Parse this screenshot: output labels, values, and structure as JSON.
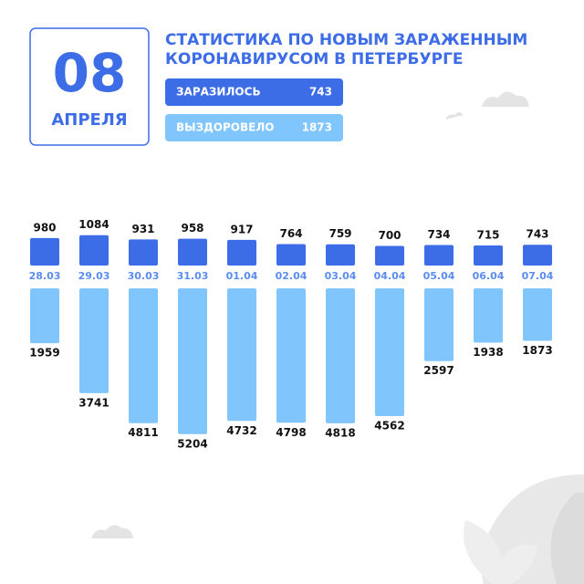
{
  "date_box": {
    "day": "08",
    "month": "АПРЕЛЯ"
  },
  "chart_data": {
    "type": "bar",
    "title": [
      "СТАТИСТИКА ПО НОВЫМ ЗАРАЖЕННЫМ",
      "КОРОНАВИРУСОМ В ПЕТЕРБУРГЕ"
    ],
    "categories": [
      "28.03",
      "29.03",
      "30.03",
      "31.03",
      "01.04",
      "02.04",
      "03.04",
      "04.04",
      "05.04",
      "06.04",
      "07.04"
    ],
    "series": [
      {
        "name": "ЗАРАЗИЛОСЬ",
        "color": "#3d6ce7",
        "values": [
          980,
          1084,
          931,
          958,
          917,
          764,
          759,
          700,
          734,
          715,
          743
        ]
      },
      {
        "name": "ВЫЗДОРОВЕЛО",
        "color": "#80c5fb",
        "values": [
          1959,
          3741,
          4811,
          5204,
          4732,
          4798,
          4818,
          4562,
          2597,
          1938,
          1873
        ]
      }
    ]
  }
}
